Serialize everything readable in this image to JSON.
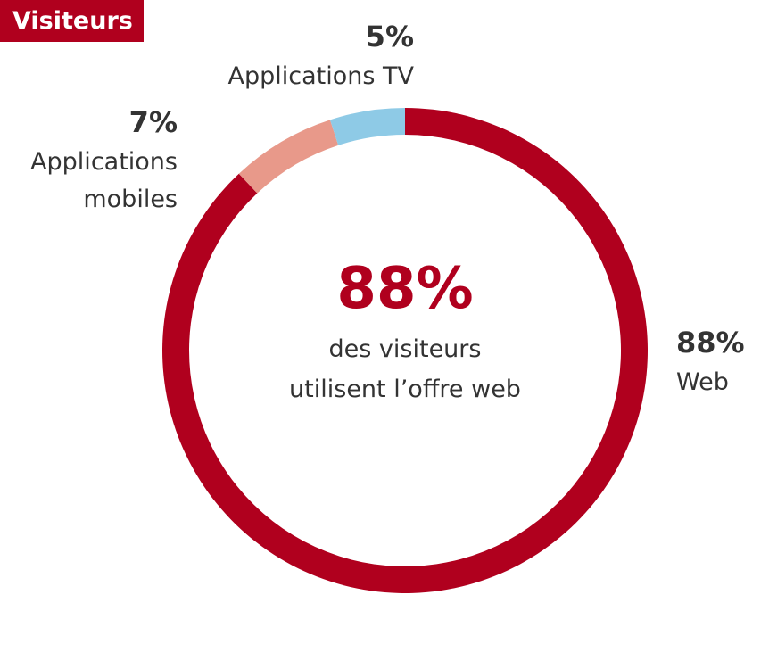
{
  "chart_data": {
    "type": "pie",
    "title": "Visiteurs",
    "categories": [
      "Web",
      "Applications mobiles",
      "Applications TV"
    ],
    "values": [
      88,
      7,
      5
    ],
    "percent_labels": [
      "88%",
      "7%",
      "5%"
    ],
    "label_lines": [
      [
        "Web"
      ],
      [
        "Applications",
        "mobiles"
      ],
      [
        "Applications TV"
      ]
    ],
    "colors": [
      "#b0001e",
      "#e8998a",
      "#8ecae6"
    ],
    "center": {
      "value": "88%",
      "caption_line1": "des visiteurs",
      "caption_line2": "utilisent l’offre web"
    }
  }
}
